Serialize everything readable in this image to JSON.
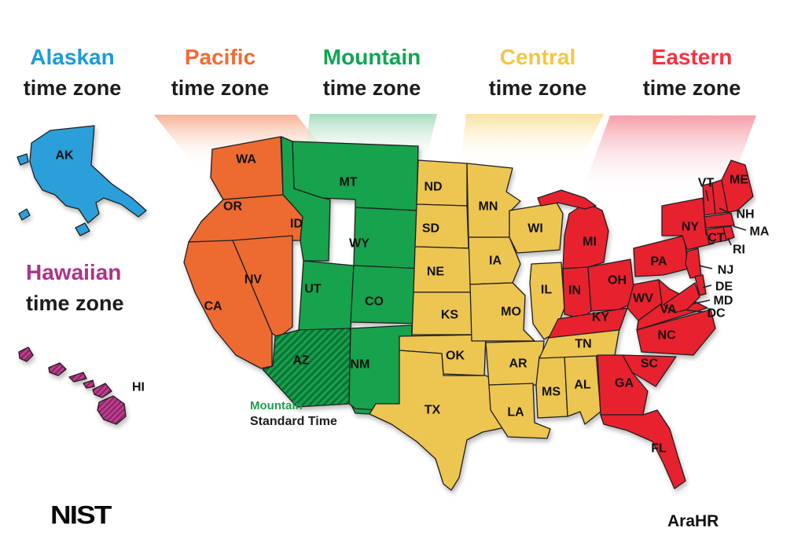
{
  "header_zones": [
    {
      "id": "alaskan",
      "name": "Alaskan",
      "sub": "time zone",
      "color": "#1B9CD8",
      "beam": null
    },
    {
      "id": "pacific",
      "name": "Pacific",
      "sub": "time zone",
      "color": "#F26B35",
      "beam": "#F6AE8E"
    },
    {
      "id": "mountain",
      "name": "Mountain",
      "sub": "time zone",
      "color": "#0FA653",
      "beam": "#A3DABA"
    },
    {
      "id": "central",
      "name": "Central",
      "sub": "time zone",
      "color": "#F2C743",
      "beam": "#F8E19C"
    },
    {
      "id": "eastern",
      "name": "Eastern",
      "sub": "time zone",
      "color": "#F5333F",
      "beam": "#F49AA5"
    }
  ],
  "hawaiian_header": {
    "id": "hawaiian",
    "name": "Hawaiian",
    "sub": "time zone",
    "color": "#AE3388"
  },
  "map": {
    "zones": [
      {
        "id": "alaskan",
        "fill": "#2B9FD9",
        "states": [
          "AK"
        ]
      },
      {
        "id": "hawaiian",
        "fill": "#C2408F",
        "stripe": "#8E2668",
        "states": [
          "HI"
        ]
      },
      {
        "id": "pacific",
        "fill": "#ED6A31",
        "states": [
          "WA",
          "OR",
          "CA",
          "NV"
        ]
      },
      {
        "id": "mountain",
        "fill": "#17A24D",
        "stripe": "#0B7437",
        "states": [
          "MT",
          "ID",
          "WY",
          "UT",
          "CO",
          "AZ",
          "NM"
        ]
      },
      {
        "id": "central",
        "fill": "#EDC551",
        "states": [
          "ND",
          "SD",
          "NE",
          "KS",
          "OK",
          "TX",
          "MN",
          "IA",
          "MO",
          "AR",
          "LA",
          "WI",
          "IL",
          "MS",
          "AL",
          "TN"
        ]
      },
      {
        "id": "eastern",
        "fill": "#E8212F",
        "states": [
          "MI",
          "IN",
          "OH",
          "KY",
          "WV",
          "VA",
          "PA",
          "NY",
          "VT",
          "NH",
          "ME",
          "MA",
          "CT",
          "RI",
          "NJ",
          "DE",
          "MD",
          "DC",
          "NC",
          "SC",
          "GA",
          "FL"
        ]
      }
    ],
    "hatched_state": "AZ",
    "striped_state": "HI",
    "annotation": {
      "line1": "Mountain",
      "line2": "Standard Time",
      "color": "#1E9E50"
    }
  },
  "footer": {
    "logo": "NIST",
    "credit": "AraHR"
  }
}
